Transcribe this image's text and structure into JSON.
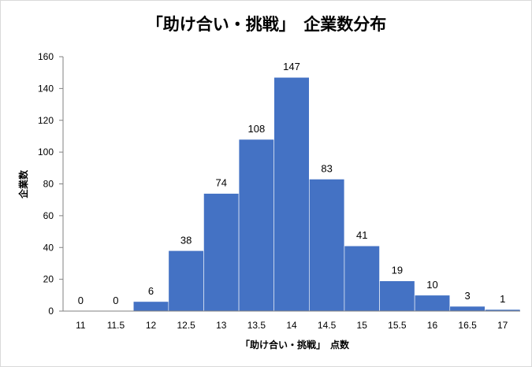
{
  "chart_data": {
    "type": "bar",
    "title": "「助け合い・挑戦」　企業数分布",
    "xlabel": "「助け合い・挑戦」　点数",
    "ylabel": "企業数",
    "categories": [
      "11",
      "11.5",
      "12",
      "12.5",
      "13",
      "13.5",
      "14",
      "14.5",
      "15",
      "15.5",
      "16",
      "16.5",
      "17"
    ],
    "values": [
      0,
      0,
      6,
      38,
      74,
      108,
      147,
      83,
      41,
      19,
      10,
      3,
      1
    ],
    "ylim": [
      0,
      160
    ],
    "yticks": [
      "0",
      "20",
      "40",
      "60",
      "80",
      "100",
      "120",
      "140",
      "160"
    ],
    "grid": false,
    "legend": "none",
    "bar_color": "#4472c4"
  }
}
